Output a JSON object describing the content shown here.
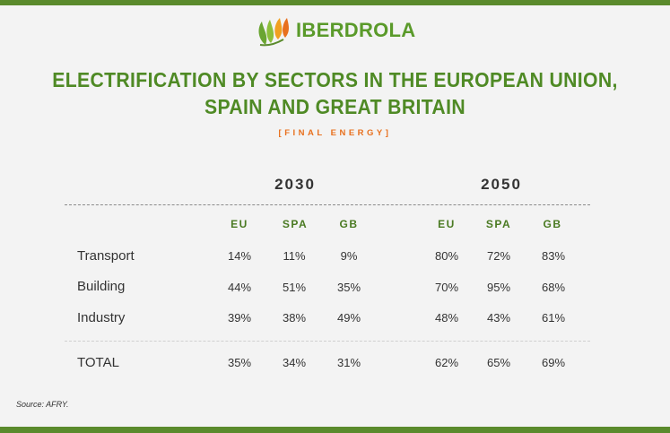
{
  "brand": {
    "name": "IBERDROLA",
    "colors": {
      "green": "#5a8a2c",
      "orange": "#e8701e"
    },
    "logo_icon": "leaf-drops-logo"
  },
  "title_line1": "ELECTRIFICATION BY SECTORS IN THE EUROPEAN UNION,",
  "title_line2": "SPAIN AND GREAT BRITAIN",
  "subtitle": "[FINAL ENERGY]",
  "table": {
    "years": [
      "2030",
      "2050"
    ],
    "columns": [
      "EU",
      "SPA",
      "GB",
      "EU",
      "SPA",
      "GB"
    ],
    "rows": [
      {
        "label": "Transport",
        "values": [
          "14%",
          "11%",
          "9%",
          "80%",
          "72%",
          "83%"
        ]
      },
      {
        "label": "Building",
        "values": [
          "44%",
          "51%",
          "35%",
          "70%",
          "95%",
          "68%"
        ]
      },
      {
        "label": "Industry",
        "values": [
          "39%",
          "38%",
          "49%",
          "48%",
          "43%",
          "61%"
        ]
      },
      {
        "label": "TOTAL",
        "values": [
          "35%",
          "34%",
          "31%",
          "62%",
          "65%",
          "69%"
        ]
      }
    ]
  },
  "source": "Source: AFRY."
}
